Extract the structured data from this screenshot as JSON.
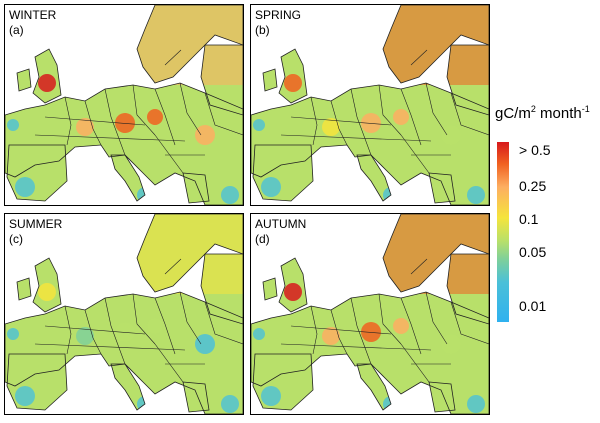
{
  "panels": [
    {
      "season": "WINTER",
      "label": "(a)",
      "hot": [
        "#d7191c",
        "#f06020",
        "#f06020",
        "#fdae61",
        "#fdae61"
      ],
      "sea_tint": "#fdae61"
    },
    {
      "season": "SPRING",
      "label": "(b)",
      "hot": [
        "#f06020",
        "#fdae61",
        "#fdae61",
        "#f5e43c",
        "#b8e06a"
      ],
      "sea_tint": "#f06020"
    },
    {
      "season": "SUMMER",
      "label": "(c)",
      "hot": [
        "#f5e43c",
        "#b8e06a",
        "#b8e06a",
        "#7fd09a",
        "#4bc0d8"
      ],
      "sea_tint": "#f5e43c"
    },
    {
      "season": "AUTUMN",
      "label": "(d)",
      "hot": [
        "#d7191c",
        "#f06020",
        "#fdae61",
        "#fdae61",
        "#b8e06a"
      ],
      "sea_tint": "#f06020"
    }
  ],
  "colorbar": {
    "unit_prefix": "gC/m",
    "unit_sup1": "2",
    "unit_mid": " month",
    "unit_sup2": "-1",
    "ticks": [
      "> 0.5",
      "0.25",
      "0.1",
      "0.05",
      "0.01"
    ],
    "colors": [
      "#d7191c",
      "#f06020",
      "#fdae61",
      "#f5e43c",
      "#b8e06a",
      "#7fd09a",
      "#4bc0d8",
      "#2fb1ef"
    ]
  },
  "map_colors": {
    "land_base": "#b8e06a",
    "sea": "#ffffff",
    "border": "#222222",
    "cold": "#4bc0d8"
  }
}
